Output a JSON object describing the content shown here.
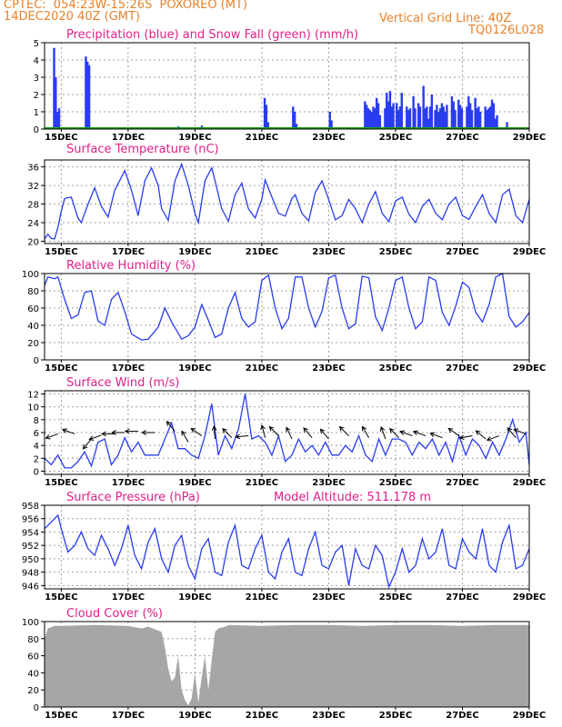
{
  "header": {
    "line1_left": "CPTEC:  054:23W-15:26S  POXOREO (MT)",
    "line2_left": "14DEC2020 40Z (GMT)",
    "line2_right": "Vertical Grid Line: 40Z",
    "line3_right": "TQ0126L028"
  },
  "colors": {
    "precip": "#2a3cf0",
    "snow": "#18a018",
    "line": "#2a3cf0",
    "title": "#e0208a",
    "header": "#e8822a",
    "cloud": "#a6a6a6"
  },
  "x_axis": {
    "range_days": [
      14.5,
      29.0
    ],
    "ticks": [
      {
        "day": 15,
        "label": "15DEC"
      },
      {
        "day": 17,
        "label": "17DEC"
      },
      {
        "day": 19,
        "label": "19DEC"
      },
      {
        "day": 21,
        "label": "21DEC"
      },
      {
        "day": 23,
        "label": "23DEC"
      },
      {
        "day": 25,
        "label": "25DEC"
      },
      {
        "day": 27,
        "label": "27DEC"
      },
      {
        "day": 29,
        "label": "29DEC"
      }
    ]
  },
  "chart_data": [
    {
      "id": "precip",
      "type": "bar",
      "title": "Precipitation (blue) and Snow Fall (green) (mm/h)",
      "ylim": [
        0,
        5
      ],
      "yticks": [
        "0",
        "1",
        "2",
        "3",
        "4",
        "5"
      ],
      "series": [
        {
          "name": "Precipitation",
          "x": [
            14.78,
            14.83,
            14.88,
            14.93,
            15.73,
            15.78,
            15.83,
            17.3,
            18.5,
            19.2,
            20.4,
            21.08,
            21.13,
            21.18,
            21.93,
            21.98,
            22.03,
            23.03,
            23.08,
            24.08,
            24.13,
            24.18,
            24.23,
            24.28,
            24.33,
            24.38,
            24.43,
            24.48,
            24.53,
            24.68,
            24.73,
            24.78,
            24.83,
            24.88,
            24.93,
            25.03,
            25.08,
            25.13,
            25.18,
            25.33,
            25.38,
            25.43,
            25.53,
            25.58,
            25.68,
            25.73,
            25.83,
            25.88,
            25.93,
            25.98,
            26.03,
            26.08,
            26.18,
            26.23,
            26.28,
            26.33,
            26.38,
            26.43,
            26.48,
            26.53,
            26.68,
            26.73,
            26.78,
            26.88,
            26.93,
            26.98,
            27.13,
            27.18,
            27.23,
            27.28,
            27.38,
            27.43,
            27.48,
            27.53,
            27.68,
            27.73,
            27.78,
            27.83,
            27.88,
            27.93,
            27.98,
            28.03,
            28.33
          ],
          "values": [
            4.7,
            3.0,
            1.0,
            1.2,
            4.2,
            3.9,
            3.7,
            0.1,
            0.15,
            0.2,
            0.1,
            1.8,
            1.4,
            0.4,
            1.3,
            1.0,
            0.3,
            1.0,
            0.5,
            1.6,
            1.4,
            1.2,
            1.1,
            1.0,
            1.3,
            1.2,
            1.8,
            1.5,
            0.8,
            1.2,
            2.1,
            1.6,
            2.2,
            1.3,
            1.5,
            1.5,
            1.1,
            1.3,
            2.1,
            1.3,
            1.1,
            1.2,
            1.9,
            1.2,
            1.5,
            1.3,
            2.5,
            1.2,
            1.3,
            0.6,
            1.3,
            2.0,
            1.1,
            1.4,
            1.0,
            1.2,
            1.5,
            1.3,
            1.0,
            1.4,
            1.9,
            1.6,
            1.1,
            1.7,
            1.4,
            1.2,
            1.3,
            1.9,
            1.5,
            1.1,
            1.8,
            1.2,
            1.3,
            1.0,
            1.3,
            1.1,
            1.2,
            1.3,
            1.7,
            1.5,
            0.6,
            0.8,
            0.4
          ]
        },
        {
          "name": "Snow Fall",
          "value": 0
        }
      ]
    },
    {
      "id": "temp",
      "type": "line",
      "title": "Surface Temperature (nC)",
      "ylim": [
        19.5,
        37.5
      ],
      "yticks": [
        "20",
        "24",
        "28",
        "32",
        "36"
      ],
      "x": [
        14.5,
        14.6,
        14.7,
        14.8,
        14.9,
        15.0,
        15.1,
        15.3,
        15.5,
        15.6,
        15.8,
        16.0,
        16.2,
        16.4,
        16.6,
        16.9,
        17.1,
        17.3,
        17.5,
        17.7,
        17.9,
        18.0,
        18.2,
        18.4,
        18.6,
        18.8,
        19.0,
        19.1,
        19.3,
        19.5,
        19.6,
        19.8,
        20.0,
        20.2,
        20.4,
        20.6,
        20.8,
        21.0,
        21.1,
        21.3,
        21.5,
        21.7,
        21.9,
        22.0,
        22.2,
        22.4,
        22.6,
        22.8,
        23.0,
        23.2,
        23.4,
        23.6,
        23.8,
        24.0,
        24.2,
        24.4,
        24.6,
        24.8,
        25.0,
        25.2,
        25.4,
        25.6,
        25.8,
        26.0,
        26.2,
        26.4,
        26.6,
        26.8,
        27.0,
        27.2,
        27.4,
        27.6,
        27.8,
        28.0,
        28.2,
        28.4,
        28.6,
        28.8,
        29.0
      ],
      "values": [
        20.5,
        21.5,
        20.6,
        20.5,
        23.0,
        26.5,
        29.2,
        29.5,
        25.0,
        24.0,
        28.0,
        31.5,
        27.5,
        25.2,
        31.0,
        35.2,
        31.0,
        25.5,
        33.0,
        35.8,
        32.0,
        27.0,
        24.5,
        33.0,
        36.6,
        32.0,
        26.0,
        24.0,
        33.0,
        35.8,
        33.0,
        27.0,
        24.3,
        30.0,
        32.5,
        27.0,
        25.0,
        29.0,
        33.2,
        29.5,
        26.0,
        25.4,
        29.2,
        30.0,
        26.0,
        24.4,
        30.5,
        33.0,
        29.0,
        24.6,
        25.5,
        29.0,
        27.0,
        24.0,
        28.0,
        30.7,
        26.0,
        24.2,
        28.7,
        29.5,
        25.8,
        24.0,
        27.5,
        29.0,
        26.0,
        24.6,
        28.0,
        29.5,
        25.5,
        24.7,
        27.5,
        30.0,
        26.0,
        24.0,
        30.0,
        31.2,
        25.5,
        24.0,
        29.0
      ]
    },
    {
      "id": "rh",
      "type": "line",
      "title": "Relative Humidity (%)",
      "ylim": [
        0,
        100
      ],
      "yticks": [
        "0",
        "20",
        "40",
        "60",
        "80",
        "100"
      ],
      "x": [
        14.5,
        14.6,
        14.8,
        14.9,
        15.1,
        15.3,
        15.5,
        15.7,
        15.9,
        16.1,
        16.3,
        16.5,
        16.7,
        16.9,
        17.1,
        17.4,
        17.6,
        17.9,
        18.1,
        18.3,
        18.6,
        18.8,
        19.0,
        19.2,
        19.4,
        19.6,
        19.8,
        20.0,
        20.2,
        20.4,
        20.6,
        20.8,
        21.0,
        21.2,
        21.4,
        21.6,
        21.8,
        22.0,
        22.2,
        22.4,
        22.6,
        22.8,
        23.0,
        23.2,
        23.4,
        23.6,
        23.8,
        24.0,
        24.2,
        24.4,
        24.6,
        24.8,
        25.0,
        25.2,
        25.4,
        25.6,
        25.8,
        26.0,
        26.2,
        26.4,
        26.6,
        26.8,
        27.0,
        27.2,
        27.4,
        27.6,
        27.8,
        28.0,
        28.2,
        28.4,
        28.6,
        28.8,
        29.0
      ],
      "values": [
        86,
        96,
        94,
        96,
        70,
        48,
        52,
        78,
        80,
        45,
        40,
        70,
        78,
        56,
        30,
        23,
        24,
        38,
        60,
        44,
        24,
        28,
        38,
        64,
        46,
        26,
        30,
        60,
        78,
        48,
        38,
        44,
        92,
        98,
        60,
        36,
        48,
        96,
        96,
        60,
        38,
        56,
        95,
        98,
        60,
        36,
        42,
        97,
        95,
        50,
        34,
        60,
        92,
        96,
        60,
        36,
        44,
        96,
        92,
        55,
        40,
        62,
        90,
        84,
        55,
        44,
        64,
        96,
        100,
        50,
        38,
        44,
        55
      ]
    },
    {
      "id": "wind",
      "type": "line",
      "title": "Surface Wind (m/s)",
      "ylim": [
        -0.5,
        12.5
      ],
      "yticks": [
        "0",
        "2",
        "4",
        "6",
        "8",
        "10",
        "12"
      ],
      "x": [
        14.5,
        14.7,
        14.9,
        15.1,
        15.3,
        15.5,
        15.7,
        15.9,
        16.1,
        16.3,
        16.5,
        16.7,
        16.9,
        17.1,
        17.3,
        17.5,
        17.7,
        17.9,
        18.1,
        18.3,
        18.5,
        18.7,
        18.9,
        19.1,
        19.3,
        19.5,
        19.7,
        19.9,
        20.1,
        20.3,
        20.5,
        20.7,
        20.9,
        21.1,
        21.3,
        21.5,
        21.7,
        21.9,
        22.1,
        22.3,
        22.5,
        22.7,
        22.9,
        23.1,
        23.3,
        23.5,
        23.7,
        23.9,
        24.1,
        24.3,
        24.5,
        24.7,
        24.9,
        25.1,
        25.3,
        25.5,
        25.7,
        25.9,
        26.1,
        26.3,
        26.5,
        26.7,
        26.9,
        27.1,
        27.3,
        27.5,
        27.7,
        27.9,
        28.1,
        28.3,
        28.5,
        28.7,
        28.9,
        29.0
      ],
      "values": [
        2.0,
        1.0,
        2.5,
        0.5,
        0.5,
        1.5,
        3.0,
        0.8,
        4.5,
        5.0,
        1.0,
        2.5,
        5.2,
        3.0,
        4.5,
        2.5,
        2.5,
        2.5,
        5.0,
        7.5,
        3.5,
        3.5,
        2.5,
        2.0,
        5.5,
        10.5,
        2.5,
        5.5,
        3.5,
        6.5,
        12.0,
        5.0,
        5.5,
        4.5,
        2.5,
        5.5,
        1.5,
        2.5,
        5.0,
        3.0,
        4.0,
        2.5,
        4.5,
        2.5,
        2.5,
        4.0,
        3.0,
        5.5,
        2.5,
        1.5,
        5.0,
        2.5,
        5.0,
        5.0,
        4.5,
        2.5,
        4.5,
        3.5,
        5.0,
        2.5,
        4.5,
        1.5,
        5.5,
        2.5,
        5.0,
        4.0,
        2.0,
        4.5,
        2.5,
        5.0,
        8.0,
        4.5,
        6.0,
        1.0
      ],
      "vectors": [
        {
          "x": 14.9,
          "y": 5.8,
          "a": 160
        },
        {
          "x": 15.4,
          "y": 5.8,
          "a": 200
        },
        {
          "x": 15.9,
          "y": 5.0,
          "a": 130
        },
        {
          "x": 16.2,
          "y": 5.6,
          "a": 160
        },
        {
          "x": 16.6,
          "y": 5.8,
          "a": 180
        },
        {
          "x": 16.9,
          "y": 6.0,
          "a": 180
        },
        {
          "x": 17.3,
          "y": 6.2,
          "a": 180
        },
        {
          "x": 17.8,
          "y": 6.0,
          "a": 180
        },
        {
          "x": 18.4,
          "y": 6.2,
          "a": 230
        },
        {
          "x": 18.8,
          "y": 4.5,
          "a": 240
        },
        {
          "x": 19.2,
          "y": 5.5,
          "a": 215
        },
        {
          "x": 19.6,
          "y": 5.0,
          "a": 265
        },
        {
          "x": 20.1,
          "y": 5.2,
          "a": 225
        },
        {
          "x": 20.6,
          "y": 5.5,
          "a": 175
        },
        {
          "x": 21.1,
          "y": 5.2,
          "a": 255
        },
        {
          "x": 21.5,
          "y": 5.5,
          "a": 225
        },
        {
          "x": 21.9,
          "y": 5.0,
          "a": 245
        },
        {
          "x": 22.5,
          "y": 5.2,
          "a": 230
        },
        {
          "x": 23.0,
          "y": 5.0,
          "a": 230
        },
        {
          "x": 23.6,
          "y": 5.5,
          "a": 225
        },
        {
          "x": 24.2,
          "y": 5.2,
          "a": 240
        },
        {
          "x": 24.7,
          "y": 5.0,
          "a": 250
        },
        {
          "x": 25.1,
          "y": 5.2,
          "a": 225
        },
        {
          "x": 25.5,
          "y": 5.5,
          "a": 200
        },
        {
          "x": 25.9,
          "y": 5.5,
          "a": 200
        },
        {
          "x": 26.4,
          "y": 5.2,
          "a": 200
        },
        {
          "x": 26.9,
          "y": 5.5,
          "a": 215
        },
        {
          "x": 27.3,
          "y": 5.5,
          "a": 170
        },
        {
          "x": 27.7,
          "y": 5.0,
          "a": 220
        },
        {
          "x": 28.1,
          "y": 5.5,
          "a": 160
        },
        {
          "x": 28.6,
          "y": 5.2,
          "a": 230
        },
        {
          "x": 28.9,
          "y": 5.8,
          "a": 200
        }
      ]
    },
    {
      "id": "pres",
      "type": "line",
      "title": "Surface Pressure (hPa)",
      "annotation": "Model Altitude: 511.178 m",
      "ylim": [
        945.5,
        958
      ],
      "yticks": [
        "946",
        "948",
        "950",
        "952",
        "954",
        "956",
        "958"
      ],
      "x": [
        14.5,
        14.7,
        14.9,
        15.0,
        15.2,
        15.4,
        15.6,
        15.8,
        16.0,
        16.2,
        16.4,
        16.6,
        16.8,
        17.0,
        17.2,
        17.4,
        17.6,
        17.8,
        18.0,
        18.2,
        18.4,
        18.6,
        18.8,
        19.0,
        19.2,
        19.4,
        19.6,
        19.8,
        20.0,
        20.2,
        20.4,
        20.6,
        20.8,
        21.0,
        21.2,
        21.4,
        21.6,
        21.8,
        22.0,
        22.2,
        22.4,
        22.6,
        22.8,
        23.0,
        23.2,
        23.4,
        23.6,
        23.8,
        24.0,
        24.2,
        24.4,
        24.6,
        24.8,
        25.0,
        25.2,
        25.4,
        25.6,
        25.8,
        26.0,
        26.2,
        26.4,
        26.6,
        26.8,
        27.0,
        27.2,
        27.4,
        27.6,
        27.8,
        28.0,
        28.2,
        28.4,
        28.6,
        28.8,
        29.0
      ],
      "values": [
        954.5,
        955.5,
        956.5,
        954.5,
        951.0,
        952.0,
        954.0,
        951.5,
        950.5,
        953.5,
        951.5,
        949.0,
        951.5,
        955.0,
        950.5,
        948.5,
        952.5,
        954.5,
        950.0,
        948.0,
        952.0,
        953.5,
        949.0,
        947.0,
        951.5,
        953.0,
        948.0,
        947.5,
        952.5,
        955.0,
        949.0,
        948.5,
        951.5,
        953.5,
        948.0,
        947.0,
        951.0,
        953.0,
        948.0,
        947.5,
        951.5,
        954.0,
        949.0,
        948.5,
        951.0,
        952.0,
        946.0,
        951.5,
        949.0,
        948.5,
        952.0,
        950.5,
        945.8,
        948.0,
        951.5,
        948.0,
        949.0,
        953.0,
        950.0,
        951.0,
        954.5,
        949.0,
        948.5,
        953.0,
        951.0,
        950.0,
        954.5,
        949.0,
        948.0,
        952.5,
        955.0,
        948.5,
        949.0,
        951.5
      ]
    },
    {
      "id": "cloud",
      "type": "area",
      "title": "Cloud Cover (%)",
      "ylim": [
        0,
        100
      ],
      "yticks": [
        "0",
        "20",
        "40",
        "60",
        "80",
        "100"
      ],
      "x": [
        14.5,
        14.6,
        14.8,
        15.0,
        16.0,
        17.0,
        17.4,
        17.6,
        18.0,
        18.1,
        18.2,
        18.3,
        18.4,
        18.5,
        18.6,
        18.7,
        18.8,
        18.9,
        19.0,
        19.1,
        19.2,
        19.3,
        19.4,
        19.5,
        19.6,
        19.7,
        19.9,
        20.0,
        21.0,
        22.0,
        23.0,
        24.0,
        25.0,
        26.0,
        27.0,
        28.0,
        29.0
      ],
      "values": [
        80,
        92,
        95,
        95,
        96,
        95,
        92,
        94,
        88,
        70,
        45,
        30,
        35,
        60,
        20,
        8,
        2,
        10,
        40,
        5,
        35,
        60,
        20,
        55,
        88,
        92,
        94,
        96,
        95,
        96,
        96,
        95,
        96,
        96,
        95,
        96,
        96
      ]
    }
  ]
}
